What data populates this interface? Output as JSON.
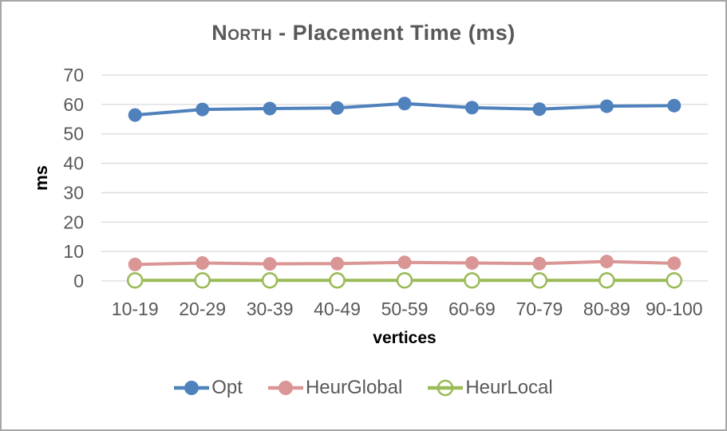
{
  "title": {
    "smallcaps_part": "North",
    "rest_part": " - Placement Time (ms)"
  },
  "axes": {
    "y_axis_label": "ms",
    "x_axis_label": "vertices"
  },
  "chart_data": {
    "type": "line",
    "title": "North - Placement Time (ms)",
    "xlabel": "vertices",
    "ylabel": "ms",
    "ylim": [
      0,
      70
    ],
    "yticks": [
      0,
      10,
      20,
      30,
      40,
      50,
      60,
      70
    ],
    "grid": true,
    "legend_position": "bottom",
    "categories": [
      "10-19",
      "20-29",
      "30-39",
      "40-49",
      "50-59",
      "60-69",
      "70-79",
      "80-89",
      "90-100"
    ],
    "series": [
      {
        "name": "Opt",
        "color": "#4F81BD",
        "marker": "filled-circle",
        "values": [
          56.4,
          58.3,
          58.6,
          58.8,
          60.3,
          58.9,
          58.4,
          59.4,
          59.6
        ]
      },
      {
        "name": "HeurGlobal",
        "color": "#D99694",
        "marker": "filled-circle",
        "values": [
          5.6,
          6.1,
          5.8,
          5.9,
          6.3,
          6.1,
          5.9,
          6.6,
          6.0
        ]
      },
      {
        "name": "HeurLocal",
        "color": "#9BBB59",
        "marker": "open-circle",
        "values": [
          0.2,
          0.2,
          0.2,
          0.2,
          0.2,
          0.2,
          0.2,
          0.2,
          0.2
        ]
      }
    ],
    "colors": {
      "gridline": "#D9D9D9",
      "tick_label": "#595959",
      "title": "#595959",
      "axis_label": "#000000",
      "legend_label": "#595959",
      "frame_border": "#a6a6a6",
      "background": "#ffffff"
    }
  }
}
